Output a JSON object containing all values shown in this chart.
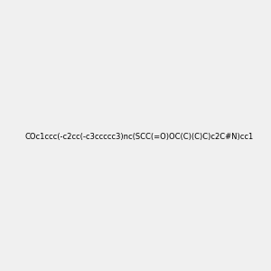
{
  "smiles": "COc1ccc(-c2cc(-c3ccccc3)nc(SCC(=O)OC(C)(C)C)c2C#N)cc1",
  "title": "",
  "background_color": "#f0f0f0",
  "atom_colors": {
    "N": "#0000ff",
    "O": "#ff0000",
    "S": "#cccc00",
    "C": "#008080",
    "default": "#008080"
  },
  "figsize": [
    3.0,
    3.0
  ],
  "dpi": 100
}
